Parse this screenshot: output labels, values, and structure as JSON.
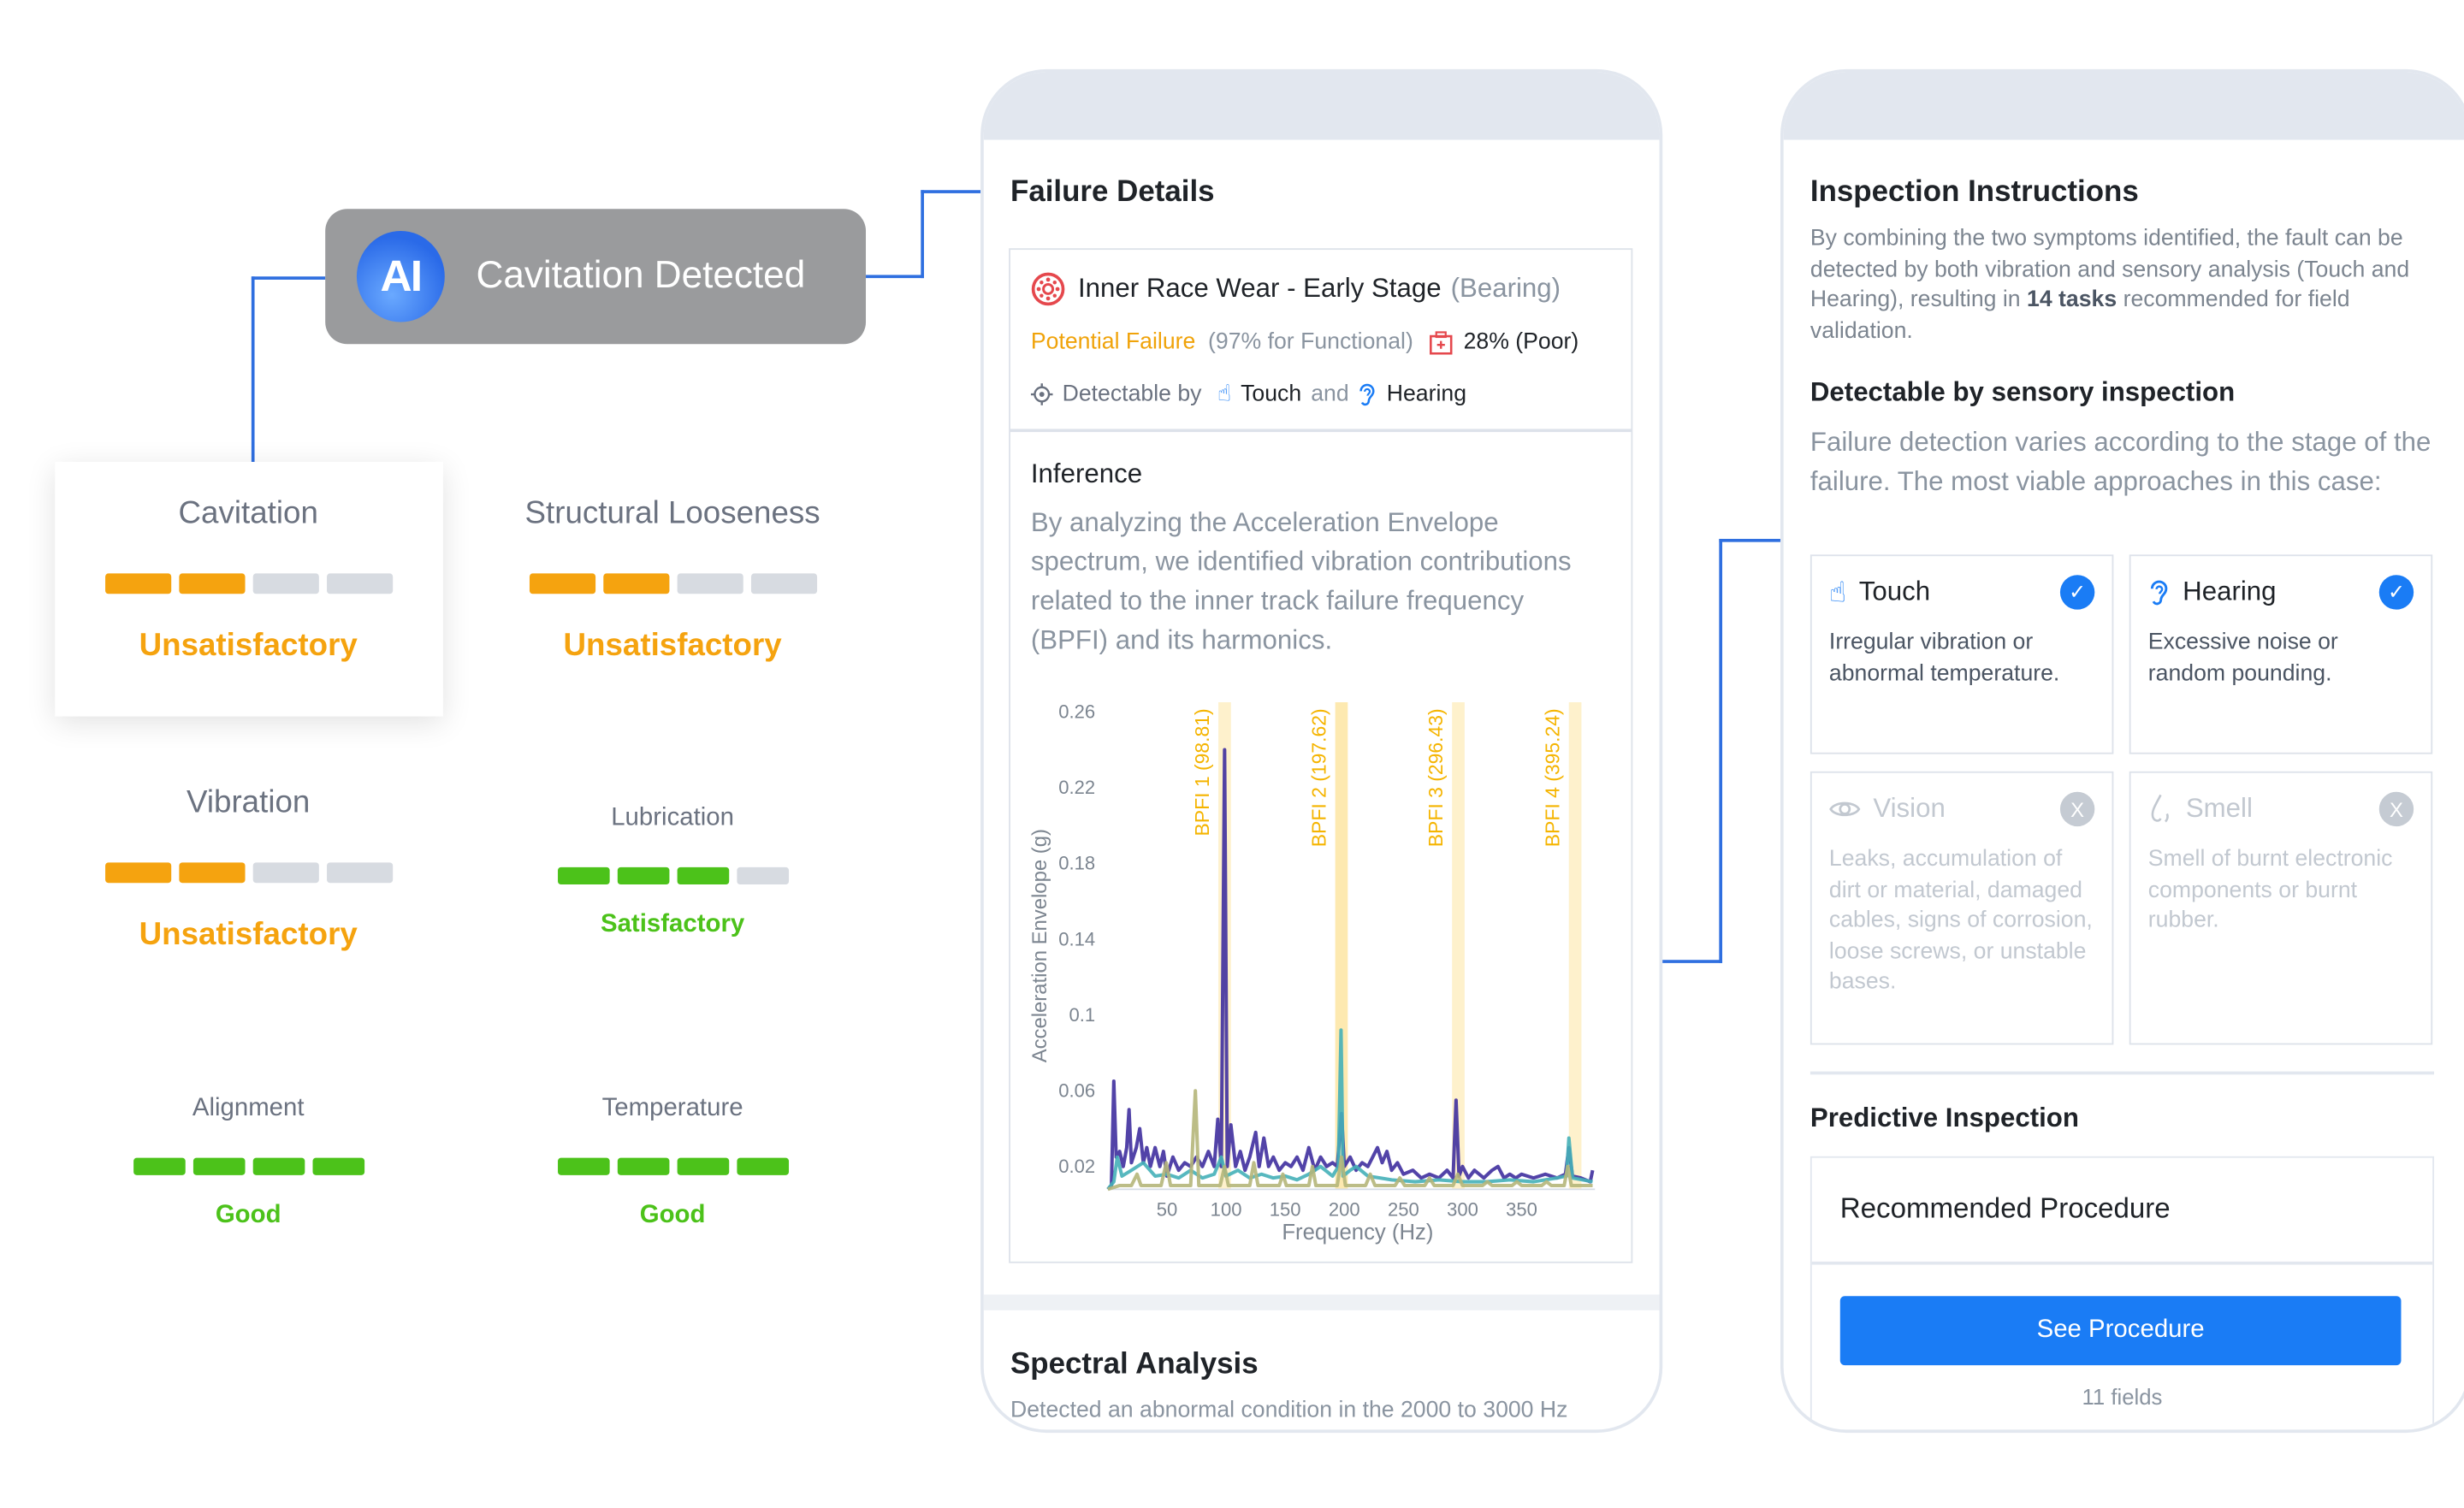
{
  "ai_node": {
    "badge": "AI",
    "title": "Cavitation Detected"
  },
  "metrics": [
    {
      "name": "Cavitation",
      "status": "Unsatisfactory",
      "level": 2,
      "of": 4,
      "color": "#f5a30f"
    },
    {
      "name": "Structural Looseness",
      "status": "Unsatisfactory",
      "level": 2,
      "of": 4,
      "color": "#f5a30f"
    },
    {
      "name": "Vibration",
      "status": "Unsatisfactory",
      "level": 2,
      "of": 4,
      "color": "#f5a30f"
    },
    {
      "name": "Lubrication",
      "status": "Satisfactory",
      "level": 3,
      "of": 4,
      "color": "#4cc21a"
    },
    {
      "name": "Alignment",
      "status": "Good",
      "level": 4,
      "of": 4,
      "color": "#4cc21a"
    },
    {
      "name": "Temperature",
      "status": "Good",
      "level": 4,
      "of": 4,
      "color": "#4cc21a"
    }
  ],
  "failure_details": {
    "heading": "Failure Details",
    "fault_title": "Inner Race Wear - Early Stage",
    "fault_component": "(Bearing)",
    "potential_failure": "Potential Failure",
    "functional": "(97% for Functional)",
    "health": "28% (Poor)",
    "detectable_by": "Detectable by",
    "sense1": "Touch",
    "and": "and",
    "sense2": "Hearing",
    "inference_heading": "Inference",
    "inference_text": "By analyzing the Acceleration Envelope spectrum, we identified vibration contributions related to the inner track failure frequency (BPFI) and its harmonics.",
    "spectral_heading": "Spectral Analysis",
    "spectral_text": "Detected an abnormal condition in the 2000 to 3000 Hz"
  },
  "chart_data": {
    "type": "line",
    "xlabel": "Frequency (Hz)",
    "ylabel": "Acceleration Envelope (g)",
    "xlim": [
      0,
      412
    ],
    "ylim": [
      0.008,
      0.265
    ],
    "xticks": [
      50,
      100,
      150,
      200,
      250,
      300,
      350
    ],
    "yticks": [
      0.02,
      0.06,
      0.1,
      0.14,
      0.18,
      0.22,
      0.26
    ],
    "ytick_labels": [
      "0.02",
      "0.06",
      "0.1",
      "0.14",
      "0.18",
      "0.22",
      "0.26"
    ],
    "grid": false,
    "bands": [
      {
        "label": "BPFI 1 (98.81)",
        "x": 98.81
      },
      {
        "label": "BPFI 2 (197.62)",
        "x": 197.62
      },
      {
        "label": "BPFI 3 (296.43)",
        "x": 296.43
      },
      {
        "label": "BPFI 4 (395.24)",
        "x": 395.24
      }
    ],
    "band_color": "#fde9b0",
    "band_label_color": "#f5b400",
    "series": [
      {
        "color": "#3f2f9e",
        "points": [
          [
            0,
            0.008
          ],
          [
            3,
            0.01
          ],
          [
            5,
            0.065
          ],
          [
            7,
            0.025
          ],
          [
            10,
            0.028
          ],
          [
            13,
            0.02
          ],
          [
            16,
            0.03
          ],
          [
            18,
            0.05
          ],
          [
            20,
            0.022
          ],
          [
            24,
            0.03
          ],
          [
            27,
            0.04
          ],
          [
            30,
            0.022
          ],
          [
            33,
            0.03
          ],
          [
            36,
            0.02
          ],
          [
            40,
            0.03
          ],
          [
            44,
            0.02
          ],
          [
            47,
            0.028
          ],
          [
            50,
            0.015
          ],
          [
            55,
            0.025
          ],
          [
            60,
            0.018
          ],
          [
            65,
            0.022
          ],
          [
            70,
            0.02
          ],
          [
            75,
            0.025
          ],
          [
            80,
            0.02
          ],
          [
            85,
            0.028
          ],
          [
            90,
            0.02
          ],
          [
            93,
            0.045
          ],
          [
            96,
            0.02
          ],
          [
            98.8,
            0.24
          ],
          [
            101,
            0.02
          ],
          [
            104,
            0.042
          ],
          [
            108,
            0.02
          ],
          [
            112,
            0.028
          ],
          [
            116,
            0.018
          ],
          [
            120,
            0.025
          ],
          [
            125,
            0.038
          ],
          [
            128,
            0.02
          ],
          [
            132,
            0.035
          ],
          [
            136,
            0.02
          ],
          [
            140,
            0.025
          ],
          [
            145,
            0.018
          ],
          [
            150,
            0.022
          ],
          [
            155,
            0.02
          ],
          [
            160,
            0.025
          ],
          [
            165,
            0.018
          ],
          [
            170,
            0.03
          ],
          [
            175,
            0.018
          ],
          [
            180,
            0.025
          ],
          [
            185,
            0.02
          ],
          [
            190,
            0.022
          ],
          [
            194,
            0.02
          ],
          [
            197.6,
            0.048
          ],
          [
            200,
            0.02
          ],
          [
            205,
            0.025
          ],
          [
            210,
            0.018
          ],
          [
            215,
            0.022
          ],
          [
            220,
            0.02
          ],
          [
            228,
            0.03
          ],
          [
            232,
            0.022
          ],
          [
            236,
            0.028
          ],
          [
            240,
            0.018
          ],
          [
            245,
            0.022
          ],
          [
            250,
            0.016
          ],
          [
            258,
            0.018
          ],
          [
            265,
            0.014
          ],
          [
            272,
            0.016
          ],
          [
            280,
            0.014
          ],
          [
            287,
            0.018
          ],
          [
            292,
            0.014
          ],
          [
            294.5,
            0.055
          ],
          [
            297,
            0.015
          ],
          [
            300,
            0.02
          ],
          [
            305,
            0.014
          ],
          [
            310,
            0.018
          ],
          [
            318,
            0.014
          ],
          [
            325,
            0.018
          ],
          [
            330,
            0.02
          ],
          [
            335,
            0.014
          ],
          [
            340,
            0.016
          ],
          [
            345,
            0.014
          ],
          [
            350,
            0.016
          ],
          [
            360,
            0.014
          ],
          [
            370,
            0.016
          ],
          [
            380,
            0.014
          ],
          [
            387,
            0.016
          ],
          [
            390,
            0.03
          ],
          [
            393,
            0.015
          ],
          [
            400,
            0.014
          ],
          [
            408,
            0.012
          ],
          [
            410,
            0.018
          ]
        ]
      },
      {
        "color": "#45b0b8",
        "points": [
          [
            0,
            0.008
          ],
          [
            5,
            0.012
          ],
          [
            8,
            0.025
          ],
          [
            12,
            0.015
          ],
          [
            20,
            0.018
          ],
          [
            30,
            0.022
          ],
          [
            40,
            0.015
          ],
          [
            50,
            0.016
          ],
          [
            60,
            0.014
          ],
          [
            70,
            0.018
          ],
          [
            80,
            0.014
          ],
          [
            90,
            0.016
          ],
          [
            96,
            0.025
          ],
          [
            100,
            0.015
          ],
          [
            110,
            0.018
          ],
          [
            120,
            0.014
          ],
          [
            130,
            0.016
          ],
          [
            140,
            0.014
          ],
          [
            150,
            0.015
          ],
          [
            160,
            0.013
          ],
          [
            170,
            0.016
          ],
          [
            180,
            0.02
          ],
          [
            190,
            0.015
          ],
          [
            195,
            0.02
          ],
          [
            197.2,
            0.092
          ],
          [
            199,
            0.015
          ],
          [
            205,
            0.018
          ],
          [
            210,
            0.02
          ],
          [
            220,
            0.015
          ],
          [
            230,
            0.014
          ],
          [
            240,
            0.013
          ],
          [
            260,
            0.012
          ],
          [
            280,
            0.013
          ],
          [
            300,
            0.012
          ],
          [
            320,
            0.012
          ],
          [
            340,
            0.013
          ],
          [
            360,
            0.012
          ],
          [
            380,
            0.014
          ],
          [
            388,
            0.015
          ],
          [
            390,
            0.035
          ],
          [
            393,
            0.014
          ],
          [
            410,
            0.012
          ]
        ]
      },
      {
        "color": "#b5b67a",
        "points": [
          [
            0,
            0.008
          ],
          [
            10,
            0.01
          ],
          [
            20,
            0.01
          ],
          [
            24.7,
            0.016
          ],
          [
            28,
            0.01
          ],
          [
            45,
            0.01
          ],
          [
            49.4,
            0.022
          ],
          [
            53,
            0.01
          ],
          [
            70,
            0.01
          ],
          [
            74,
            0.06
          ],
          [
            77,
            0.01
          ],
          [
            95,
            0.01
          ],
          [
            98.8,
            0.02
          ],
          [
            102,
            0.01
          ],
          [
            120,
            0.01
          ],
          [
            123.5,
            0.022
          ],
          [
            127,
            0.01
          ],
          [
            145,
            0.01
          ],
          [
            148,
            0.016
          ],
          [
            151,
            0.01
          ],
          [
            170,
            0.01
          ],
          [
            173,
            0.02
          ],
          [
            176,
            0.01
          ],
          [
            194,
            0.01
          ],
          [
            197.6,
            0.025
          ],
          [
            201,
            0.01
          ],
          [
            218,
            0.01
          ],
          [
            222,
            0.016
          ],
          [
            226,
            0.01
          ],
          [
            243,
            0.01
          ],
          [
            247,
            0.014
          ],
          [
            251,
            0.01
          ],
          [
            268,
            0.01
          ],
          [
            272,
            0.014
          ],
          [
            276,
            0.01
          ],
          [
            292,
            0.01
          ],
          [
            296,
            0.016
          ],
          [
            300,
            0.01
          ],
          [
            317,
            0.01
          ],
          [
            321,
            0.012
          ],
          [
            325,
            0.01
          ],
          [
            342,
            0.01
          ],
          [
            346,
            0.012
          ],
          [
            350,
            0.01
          ],
          [
            367,
            0.01
          ],
          [
            371,
            0.012
          ],
          [
            375,
            0.01
          ],
          [
            386,
            0.01
          ],
          [
            389,
            0.02
          ],
          [
            392,
            0.01
          ],
          [
            410,
            0.01
          ]
        ]
      }
    ]
  },
  "inspection": {
    "heading": "Inspection Instructions",
    "intro_a": "By combining the two symptoms identified, the fault can be detected by both vibration and sensory analysis (Touch and Hearing), resulting in ",
    "intro_bold": "14 tasks",
    "intro_b": " recommended for field validation.",
    "sensory_heading": "Detectable by sensory inspection",
    "sensory_text": "Failure detection varies according to the stage of the failure. The most viable approaches in this case:",
    "senses": [
      {
        "name": "Touch",
        "desc": "Irregular vibration or abnormal temperature.",
        "enabled": true,
        "icon": "hand-pointer-icon"
      },
      {
        "name": "Hearing",
        "desc": "Excessive noise or random pounding.",
        "enabled": true,
        "icon": "ear-icon"
      },
      {
        "name": "Vision",
        "desc": "Leaks, accumulation of dirt or material, damaged cables, signs of corrosion, loose screws, or unstable bases.",
        "enabled": false,
        "icon": "eye-icon"
      },
      {
        "name": "Smell",
        "desc": "Smell of burnt electronic components or burnt rubber.",
        "enabled": false,
        "icon": "nose-icon"
      }
    ],
    "check_glyph": "✓",
    "cross_glyph": "X",
    "predictive_heading": "Predictive Inspection",
    "procedure_title": "Recommended Procedure",
    "procedure_button": "See Procedure",
    "fields": "11 fields",
    "accent": "#1a7cf5"
  }
}
